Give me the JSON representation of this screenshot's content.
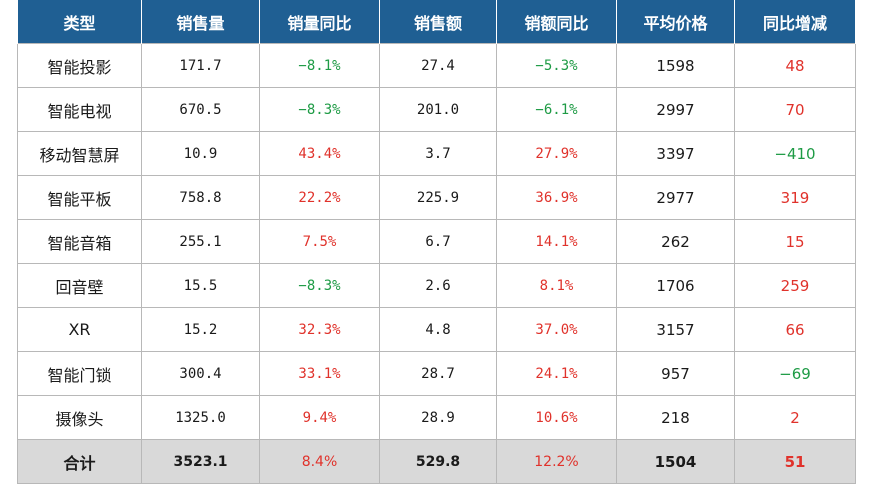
{
  "colors": {
    "header_bg": "#1f5f93",
    "negative": "#1e9b45",
    "positive": "#e0322b",
    "total_bg": "#d9d9d9"
  },
  "headers": [
    "类型",
    "销售量",
    "销量同比",
    "销售额",
    "销额同比",
    "平均价格",
    "同比增减"
  ],
  "rows": [
    {
      "type": "智能投影",
      "sales_volume": "171.7",
      "volume_yoy": "−8.1%",
      "volume_yoy_dir": "neg",
      "sales_amount": "27.4",
      "amount_yoy": "−5.3%",
      "amount_yoy_dir": "neg",
      "avg_price": "1598",
      "price_change": "48",
      "price_change_dir": "pos"
    },
    {
      "type": "智能电视",
      "sales_volume": "670.5",
      "volume_yoy": "−8.3%",
      "volume_yoy_dir": "neg",
      "sales_amount": "201.0",
      "amount_yoy": "−6.1%",
      "amount_yoy_dir": "neg",
      "avg_price": "2997",
      "price_change": "70",
      "price_change_dir": "pos"
    },
    {
      "type": "移动智慧屏",
      "sales_volume": "10.9",
      "volume_yoy": "43.4%",
      "volume_yoy_dir": "pos",
      "sales_amount": "3.7",
      "amount_yoy": "27.9%",
      "amount_yoy_dir": "pos",
      "avg_price": "3397",
      "price_change": "−410",
      "price_change_dir": "neg"
    },
    {
      "type": "智能平板",
      "sales_volume": "758.8",
      "volume_yoy": "22.2%",
      "volume_yoy_dir": "pos",
      "sales_amount": "225.9",
      "amount_yoy": "36.9%",
      "amount_yoy_dir": "pos",
      "avg_price": "2977",
      "price_change": "319",
      "price_change_dir": "pos"
    },
    {
      "type": "智能音箱",
      "sales_volume": "255.1",
      "volume_yoy": "7.5%",
      "volume_yoy_dir": "pos",
      "sales_amount": "6.7",
      "amount_yoy": "14.1%",
      "amount_yoy_dir": "pos",
      "avg_price": "262",
      "price_change": "15",
      "price_change_dir": "pos"
    },
    {
      "type": "回音壁",
      "sales_volume": "15.5",
      "volume_yoy": "−8.3%",
      "volume_yoy_dir": "neg",
      "sales_amount": "2.6",
      "amount_yoy": "8.1%",
      "amount_yoy_dir": "pos",
      "avg_price": "1706",
      "price_change": "259",
      "price_change_dir": "pos"
    },
    {
      "type": "XR",
      "sales_volume": "15.2",
      "volume_yoy": "32.3%",
      "volume_yoy_dir": "pos",
      "sales_amount": "4.8",
      "amount_yoy": "37.0%",
      "amount_yoy_dir": "pos",
      "avg_price": "3157",
      "price_change": "66",
      "price_change_dir": "pos"
    },
    {
      "type": "智能门锁",
      "sales_volume": "300.4",
      "volume_yoy": "33.1%",
      "volume_yoy_dir": "pos",
      "sales_amount": "28.7",
      "amount_yoy": "24.1%",
      "amount_yoy_dir": "pos",
      "avg_price": "957",
      "price_change": "−69",
      "price_change_dir": "neg"
    },
    {
      "type": "摄像头",
      "sales_volume": "1325.0",
      "volume_yoy": "9.4%",
      "volume_yoy_dir": "pos",
      "sales_amount": "28.9",
      "amount_yoy": "10.6%",
      "amount_yoy_dir": "pos",
      "avg_price": "218",
      "price_change": "2",
      "price_change_dir": "pos"
    }
  ],
  "total": {
    "type": "合计",
    "sales_volume": "3523.1",
    "volume_yoy": "8.4%",
    "volume_yoy_dir": "pos",
    "sales_amount": "529.8",
    "amount_yoy": "12.2%",
    "amount_yoy_dir": "pos",
    "avg_price": "1504",
    "price_change": "51",
    "price_change_dir": "pos"
  }
}
